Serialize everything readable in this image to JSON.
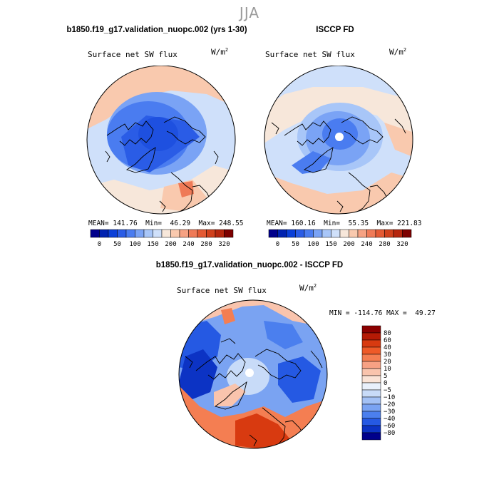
{
  "season": "JJA",
  "panels": [
    {
      "title": "b1850.f19_g17.validation_nuopc.002 (yrs 1-30)",
      "variable": "Surface net SW flux",
      "units_base": "W/m",
      "units_exp": "2",
      "mean_label": "MEAN=",
      "mean": "141.76",
      "min_label": "Min=",
      "min": "46.29",
      "max_label": "Max=",
      "max": "248.55"
    },
    {
      "title": "ISCCP FD",
      "variable": "Surface net SW flux",
      "units_base": "W/m",
      "units_exp": "2",
      "mean_label": "MEAN=",
      "mean": "160.16",
      "min_label": "Min=",
      "min": "55.35",
      "max_label": "Max=",
      "max": "221.83"
    }
  ],
  "abs_colorbar": {
    "colors": [
      "#00008b",
      "#0022b0",
      "#0a3fd8",
      "#2a5ce6",
      "#4a7cf0",
      "#7aa3f5",
      "#a8c6f8",
      "#cfe0fa",
      "#f7e7da",
      "#f9c9ae",
      "#f6a283",
      "#ef7a57",
      "#e45a34",
      "#d0401c",
      "#b5260e",
      "#7d0000"
    ],
    "tick_labels": [
      "0",
      "50",
      "100",
      "150",
      "200",
      "240",
      "280",
      "320"
    ]
  },
  "diff_panel": {
    "title": "b1850.f19_g17.validation_nuopc.002 - ISCCP FD",
    "variable": "Surface net SW flux",
    "units_base": "W/m",
    "units_exp": "2",
    "min_label": "MIN =",
    "min": "-114.76",
    "max_label": "MAX =",
    "max": "49.27"
  },
  "diff_colorbar": {
    "colors": [
      "#8b0000",
      "#b51a05",
      "#d83a10",
      "#ee5a28",
      "#f47e52",
      "#f7a184",
      "#f9c4ad",
      "#fae3d6",
      "#e9f0fb",
      "#c8dbf8",
      "#a3c1f5",
      "#7aa3f2",
      "#4b7fee",
      "#2559e3",
      "#0c33c4",
      "#00008b"
    ],
    "tick_labels": [
      "80",
      "60",
      "40",
      "30",
      "20",
      "10",
      "5",
      "0",
      "−5",
      "−10",
      "−20",
      "−30",
      "−40",
      "−60",
      "−80"
    ]
  }
}
